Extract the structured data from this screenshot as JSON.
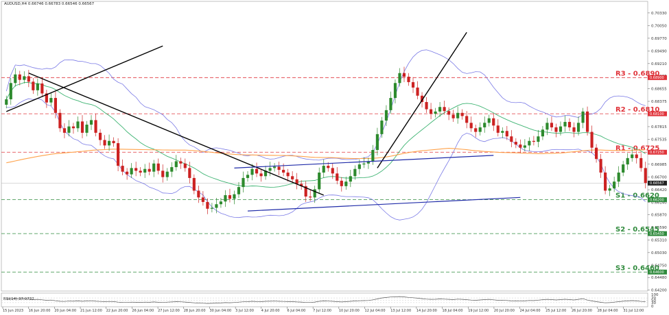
{
  "header": {
    "symbol_line": "AUDUSD,H4  0.66746 0.66783 0.66546 0.66567",
    "rsi_label": "RSI(14) 37.9732"
  },
  "colors": {
    "bull": "#2d8a2d",
    "bear": "#cc2222",
    "resistance": "#e0333a",
    "support": "#2f8a3c",
    "bollinger": "#7a7ae6",
    "ma_fast": "#3cb371",
    "ma_slow": "#ffa24a",
    "trendline": "#000000",
    "channel": "#1e2aa8",
    "rsi": "#555555"
  },
  "chart_data": {
    "type": "candlestick",
    "title": "",
    "y_axis": {
      "range": [
        0.6418,
        0.7048
      ],
      "ticks": [
        "0.70330",
        "0.70050",
        "0.69770",
        "0.69490",
        "0.69210",
        "0.68935",
        "0.68655",
        "0.68375",
        "0.68095",
        "0.67815",
        "0.67535",
        "0.67255",
        "0.66985",
        "0.66700",
        "0.66420",
        "0.66140",
        "0.65870",
        "0.65590",
        "0.65310",
        "0.65030",
        "0.64750",
        "0.64480",
        "0.64200"
      ]
    },
    "x_axis": {
      "ticks": [
        "15 Jun 2023",
        "16 Jun 20:00",
        "20 Jun 04:00",
        "21 Jun 12:00",
        "22 Jun 20:00",
        "26 Jun 04:00",
        "27 Jun 12:00",
        "28 Jun 20:00",
        "30 Jun 04:00",
        "3 Jul 12:00",
        "4 Jul 20:00",
        "6 Jul 04:00",
        "7 Jul 12:00",
        "10 Jul 20:00",
        "12 Jul 04:00",
        "13 Jul 12:00",
        "14 Jul 20:00",
        "18 Jul 04:00",
        "19 Jul 12:00",
        "20 Jul 20:00",
        "24 Jul 04:00",
        "25 Jul 12:00",
        "26 Jul 20:00",
        "28 Jul 04:00",
        "31 Jul 12:00"
      ]
    },
    "levels": [
      {
        "name": "R3 - 0.6890",
        "price": 0.689,
        "tag": "0.68900",
        "kind": "resistance"
      },
      {
        "name": "R2 - 0.6810",
        "price": 0.681,
        "tag": "0.68100",
        "kind": "resistance"
      },
      {
        "name": "R1 - 0.6725",
        "price": 0.6725,
        "tag": "0.67250",
        "kind": "resistance"
      },
      {
        "name": "S1 - 0.6620",
        "price": 0.662,
        "tag": "0.66200",
        "kind": "support"
      },
      {
        "name": "S2 - 0.6545",
        "price": 0.6545,
        "tag": "0.65450",
        "kind": "support"
      },
      {
        "name": "S3 - 0.6460",
        "price": 0.646,
        "tag": "0.64600",
        "kind": "support"
      }
    ],
    "current_price": {
      "price": 0.66567,
      "tag": "0.66567"
    },
    "closes": [
      0.6842,
      0.6878,
      0.6897,
      0.6885,
      0.6893,
      0.6881,
      0.6862,
      0.6877,
      0.6855,
      0.6835,
      0.6845,
      0.6812,
      0.6778,
      0.6768,
      0.6782,
      0.6778,
      0.6793,
      0.6768,
      0.6786,
      0.6796,
      0.6768,
      0.6752,
      0.674,
      0.675,
      0.6745,
      0.6695,
      0.6682,
      0.6676,
      0.669,
      0.6684,
      0.668,
      0.6688,
      0.6682,
      0.67,
      0.6684,
      0.667,
      0.6682,
      0.6692,
      0.6705,
      0.67,
      0.669,
      0.6668,
      0.664,
      0.6625,
      0.6615,
      0.66,
      0.6602,
      0.661,
      0.6616,
      0.663,
      0.6622,
      0.6632,
      0.6648,
      0.6668,
      0.6675,
      0.6688,
      0.6678,
      0.6672,
      0.6684,
      0.669,
      0.6693,
      0.6686,
      0.668,
      0.6672,
      0.6665,
      0.6655,
      0.665,
      0.6627,
      0.6625,
      0.6643,
      0.668,
      0.6695,
      0.669,
      0.6678,
      0.6662,
      0.665,
      0.666,
      0.6672,
      0.6688,
      0.6698,
      0.67,
      0.6705,
      0.673,
      0.6765,
      0.6795,
      0.6818,
      0.6845,
      0.6878,
      0.69,
      0.6892,
      0.688,
      0.6868,
      0.685,
      0.6836,
      0.682,
      0.681,
      0.6815,
      0.6825,
      0.6816,
      0.6808,
      0.68,
      0.6812,
      0.6805,
      0.679,
      0.6778,
      0.677,
      0.678,
      0.679,
      0.68,
      0.6784,
      0.6768,
      0.6772,
      0.676,
      0.6748,
      0.6742,
      0.6735,
      0.674,
      0.675,
      0.6748,
      0.676,
      0.6775,
      0.679,
      0.678,
      0.677,
      0.6782,
      0.6792,
      0.678,
      0.677,
      0.679,
      0.6815,
      0.677,
      0.6735,
      0.671,
      0.668,
      0.664,
      0.6645,
      0.666,
      0.668,
      0.6698,
      0.6712,
      0.672,
      0.6712,
      0.669,
      0.6657
    ],
    "rsi_ticks": [
      "100",
      "70",
      "50",
      "30",
      "0"
    ],
    "rsi_values": [
      60,
      63,
      66,
      63,
      64,
      60,
      56,
      58,
      54,
      50,
      52,
      46,
      41,
      40,
      43,
      42,
      45,
      41,
      44,
      46,
      42,
      40,
      38,
      40,
      39,
      34,
      32,
      31,
      34,
      33,
      32,
      34,
      33,
      36,
      33,
      31,
      34,
      36,
      38,
      37,
      35,
      32,
      28,
      26,
      25,
      23,
      24,
      26,
      27,
      30,
      29,
      31,
      34,
      37,
      38,
      41,
      39,
      38,
      41,
      42,
      43,
      41,
      40,
      39,
      38,
      36,
      35,
      31,
      31,
      35,
      41,
      44,
      43,
      41,
      38,
      36,
      38,
      41,
      44,
      46,
      47,
      48,
      54,
      62,
      70,
      74,
      78,
      80,
      82,
      79,
      75,
      72,
      68,
      64,
      60,
      58,
      59,
      62,
      60,
      58,
      56,
      60,
      58,
      55,
      52,
      50,
      53,
      56,
      58,
      54,
      50,
      51,
      48,
      45,
      44,
      43,
      45,
      48,
      47,
      51,
      55,
      58,
      56,
      53,
      56,
      59,
      56,
      53,
      58,
      64,
      52,
      44,
      38,
      33,
      28,
      30,
      34,
      38,
      42,
      45,
      47,
      45,
      40,
      37.97
    ]
  }
}
